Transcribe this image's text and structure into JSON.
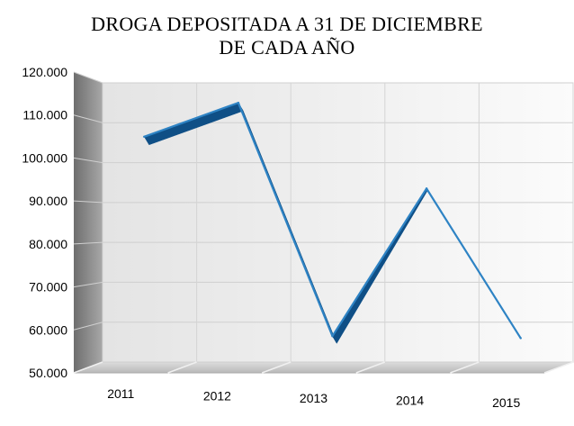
{
  "chart_data": {
    "type": "line",
    "title_line1": "DROGA DEPOSITADA A 31 DE DICIEMBRE",
    "title_line2": "DE CADA AÑO",
    "categories": [
      "2011",
      "2012",
      "2013",
      "2014",
      "2015"
    ],
    "values": [
      106500,
      115000,
      56500,
      93500,
      56000
    ],
    "ylim": [
      50000,
      120000
    ],
    "yticks": [
      "50.000",
      "60.000",
      "70.000",
      "80.000",
      "90.000",
      "100.000",
      "110.000",
      "120.000"
    ],
    "grid": true,
    "style": "3d",
    "colors": {
      "line": "#2e83c4",
      "line_dark": "#0f4f86",
      "floor": "#c8c8c8",
      "wall": "#f2f2f2"
    }
  }
}
